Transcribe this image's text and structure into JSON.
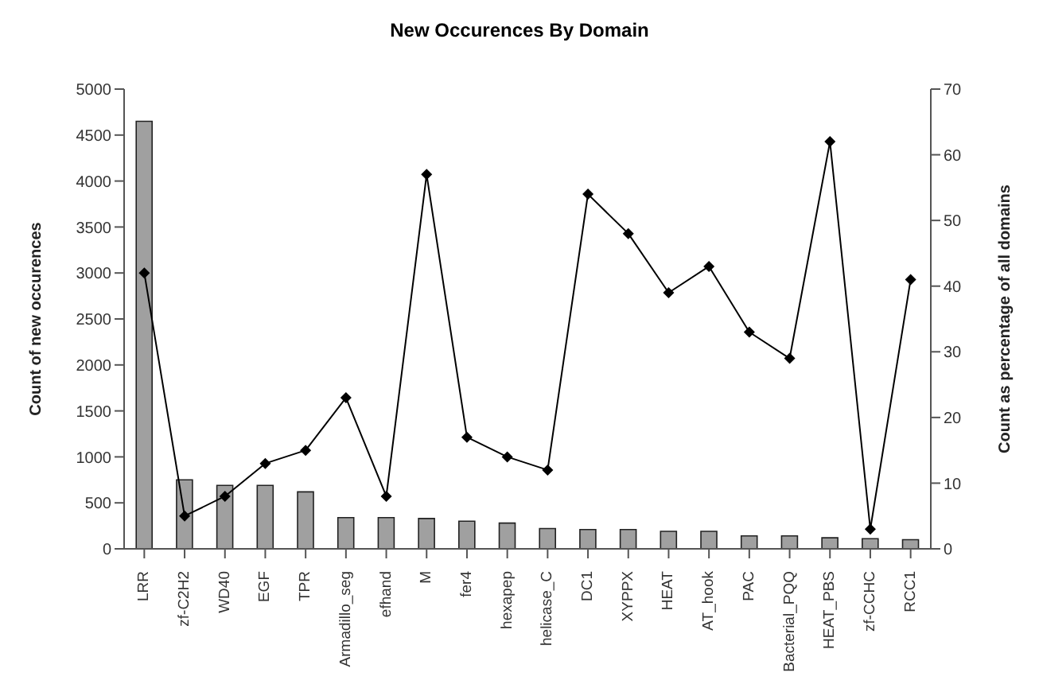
{
  "chart_data": {
    "type": "bar",
    "title": "New Occurences By Domain",
    "ylabel": "Count of new occurences",
    "y2label": "Count as percentage of all domains",
    "categories": [
      "LRR",
      "zf-C2H2",
      "WD40",
      "EGF",
      "TPR",
      "Armadillo_seg",
      "efhand",
      "M",
      "fer4",
      "hexapep",
      "helicase_C",
      "DC1",
      "XYPPX",
      "HEAT",
      "AT_hook",
      "PAC",
      "Bacterial_PQQ",
      "HEAT_PBS",
      "zf-CCHC",
      "RCC1"
    ],
    "series": [
      {
        "color": "#a0a0a0",
        "values": [
          4650,
          750,
          690,
          690,
          620,
          340,
          340,
          330,
          300,
          280,
          220,
          210,
          210,
          190,
          190,
          140,
          140,
          120,
          110,
          100
        ]
      },
      {
        "type": "line",
        "axis": "y2",
        "color": "#000000",
        "marker": "diamond",
        "values": [
          42,
          5,
          8,
          13,
          15,
          23,
          8,
          57,
          17,
          14,
          12,
          54,
          48,
          39,
          43,
          33,
          29,
          62,
          3,
          41
        ]
      }
    ],
    "ylim": [
      0,
      5000
    ],
    "yticks": [
      0,
      500,
      1000,
      1500,
      2000,
      2500,
      3000,
      3500,
      4000,
      4500,
      5000
    ],
    "y2lim": [
      0,
      70
    ],
    "y2ticks": [
      0,
      10,
      20,
      30,
      40,
      50,
      60,
      70
    ],
    "grid": false,
    "legend": false
  }
}
